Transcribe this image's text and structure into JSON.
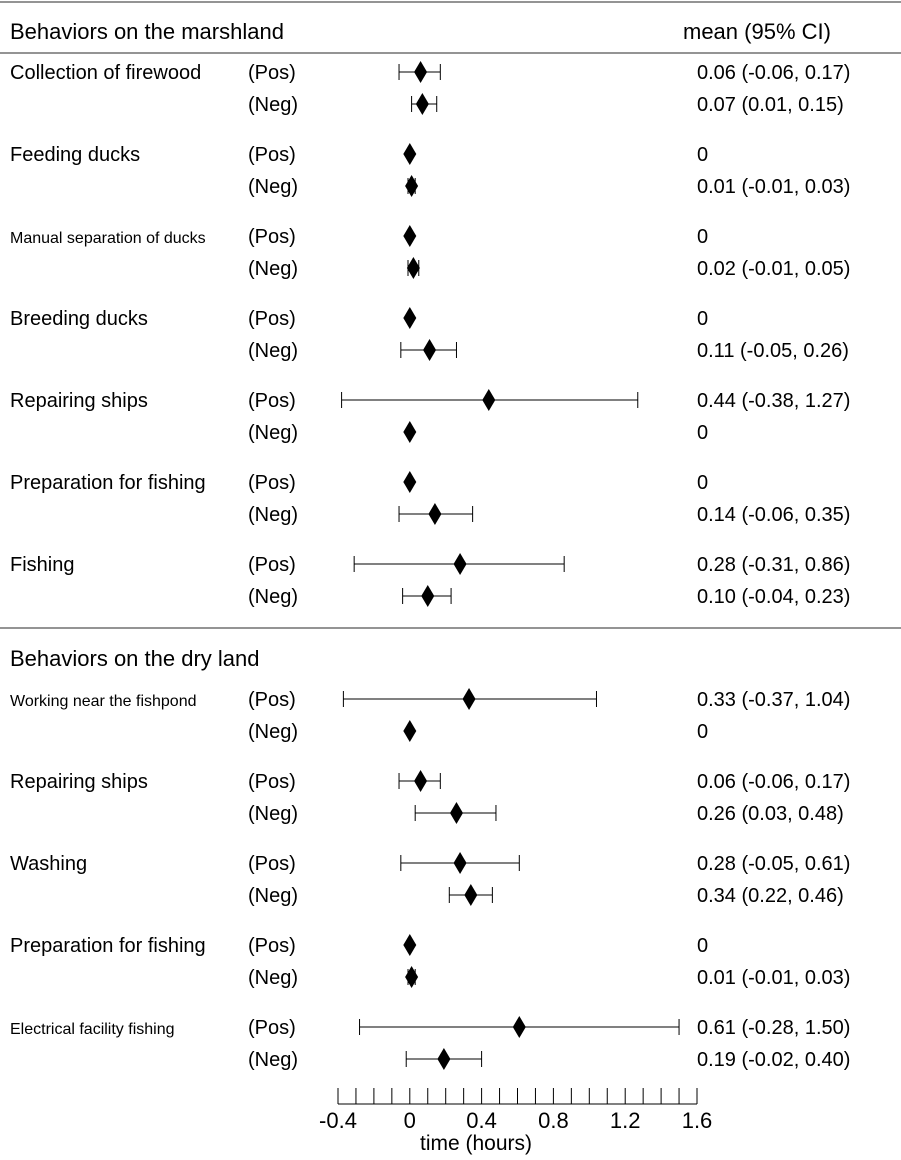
{
  "chart_data": {
    "type": "forest",
    "header_left": "Behaviors on the marshland",
    "header_right": "mean (95% CI)",
    "xlabel": "time (hours)",
    "xlim": [
      -0.4,
      1.6
    ],
    "ticks": [
      "-0.4",
      "0",
      "0.4",
      "0.8",
      "1.2",
      "1.6"
    ],
    "minor_tick_step": 0.1,
    "sections": [
      {
        "title": "Behaviors on the marshland",
        "rows": [
          {
            "behavior": "Collection of firewood",
            "small": false,
            "entries": [
              {
                "group": "(Pos)",
                "mean": 0.06,
                "lo": -0.06,
                "hi": 0.17,
                "label": "0.06 (-0.06, 0.17)"
              },
              {
                "group": "(Neg)",
                "mean": 0.07,
                "lo": 0.01,
                "hi": 0.15,
                "label": "0.07 (0.01, 0.15)"
              }
            ]
          },
          {
            "behavior": "Feeding ducks",
            "small": false,
            "entries": [
              {
                "group": "(Pos)",
                "mean": 0,
                "lo": null,
                "hi": null,
                "label": "0"
              },
              {
                "group": "(Neg)",
                "mean": 0.01,
                "lo": -0.01,
                "hi": 0.03,
                "label": "0.01 (-0.01, 0.03)"
              }
            ]
          },
          {
            "behavior": "Manual separation of ducks",
            "small": true,
            "entries": [
              {
                "group": "(Pos)",
                "mean": 0,
                "lo": null,
                "hi": null,
                "label": "0"
              },
              {
                "group": "(Neg)",
                "mean": 0.02,
                "lo": -0.01,
                "hi": 0.05,
                "label": "0.02 (-0.01, 0.05)"
              }
            ]
          },
          {
            "behavior": "Breeding ducks",
            "small": false,
            "entries": [
              {
                "group": "(Pos)",
                "mean": 0,
                "lo": null,
                "hi": null,
                "label": "0"
              },
              {
                "group": "(Neg)",
                "mean": 0.11,
                "lo": -0.05,
                "hi": 0.26,
                "label": "0.11 (-0.05, 0.26)"
              }
            ]
          },
          {
            "behavior": "Repairing ships",
            "small": false,
            "entries": [
              {
                "group": "(Pos)",
                "mean": 0.44,
                "lo": -0.38,
                "hi": 1.27,
                "label": "0.44 (-0.38, 1.27)"
              },
              {
                "group": "(Neg)",
                "mean": 0,
                "lo": null,
                "hi": null,
                "label": "0"
              }
            ]
          },
          {
            "behavior": "Preparation for fishing",
            "small": false,
            "entries": [
              {
                "group": "(Pos)",
                "mean": 0,
                "lo": null,
                "hi": null,
                "label": "0"
              },
              {
                "group": "(Neg)",
                "mean": 0.14,
                "lo": -0.06,
                "hi": 0.35,
                "label": "0.14 (-0.06, 0.35)"
              }
            ]
          },
          {
            "behavior": "Fishing",
            "small": false,
            "entries": [
              {
                "group": "(Pos)",
                "mean": 0.28,
                "lo": -0.31,
                "hi": 0.86,
                "label": "0.28 (-0.31, 0.86)"
              },
              {
                "group": "(Neg)",
                "mean": 0.1,
                "lo": -0.04,
                "hi": 0.23,
                "label": "0.10 (-0.04, 0.23)"
              }
            ]
          }
        ]
      },
      {
        "title": "Behaviors on the dry land",
        "rows": [
          {
            "behavior": "Working near the fishpond",
            "small": true,
            "entries": [
              {
                "group": "(Pos)",
                "mean": 0.33,
                "lo": -0.37,
                "hi": 1.04,
                "label": "0.33 (-0.37, 1.04)"
              },
              {
                "group": "(Neg)",
                "mean": 0,
                "lo": null,
                "hi": null,
                "label": "0"
              }
            ]
          },
          {
            "behavior": "Repairing ships",
            "small": false,
            "entries": [
              {
                "group": "(Pos)",
                "mean": 0.06,
                "lo": -0.06,
                "hi": 0.17,
                "label": "0.06 (-0.06, 0.17)"
              },
              {
                "group": "(Neg)",
                "mean": 0.26,
                "lo": 0.03,
                "hi": 0.48,
                "label": "0.26 (0.03, 0.48)"
              }
            ]
          },
          {
            "behavior": "Washing",
            "small": false,
            "entries": [
              {
                "group": "(Pos)",
                "mean": 0.28,
                "lo": -0.05,
                "hi": 0.61,
                "label": "0.28 (-0.05, 0.61)"
              },
              {
                "group": "(Neg)",
                "mean": 0.34,
                "lo": 0.22,
                "hi": 0.46,
                "label": "0.34 (0.22, 0.46)"
              }
            ]
          },
          {
            "behavior": "Preparation for fishing",
            "small": false,
            "entries": [
              {
                "group": "(Pos)",
                "mean": 0,
                "lo": null,
                "hi": null,
                "label": "0"
              },
              {
                "group": "(Neg)",
                "mean": 0.01,
                "lo": -0.01,
                "hi": 0.03,
                "label": "0.01 (-0.01, 0.03)"
              }
            ]
          },
          {
            "behavior": "Electrical facility fishing",
            "small": true,
            "entries": [
              {
                "group": "(Pos)",
                "mean": 0.61,
                "lo": -0.28,
                "hi": 1.5,
                "label": "0.61 (-0.28, 1.50)"
              },
              {
                "group": "(Neg)",
                "mean": 0.19,
                "lo": -0.02,
                "hi": 0.4,
                "label": "0.19 (-0.02, 0.40)"
              }
            ]
          }
        ]
      }
    ]
  }
}
